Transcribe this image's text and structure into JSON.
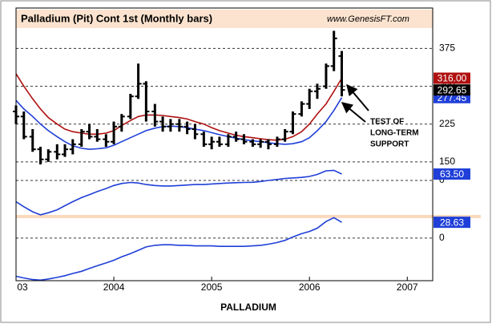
{
  "chart_data": [
    {
      "type": "ohlc",
      "title": "Palladium (Pit) Cont 1st  (Monthly bars)",
      "watermark": "www.GenesisFT.com",
      "annotation": [
        "TEST OF",
        "LONG-TERM",
        "SUPPORT"
      ],
      "bar_color": "#000000",
      "grid": true,
      "x": [
        2003,
        2003.08,
        2003.17,
        2003.25,
        2003.33,
        2003.42,
        2003.5,
        2003.58,
        2003.67,
        2003.75,
        2003.83,
        2003.92,
        2004,
        2004.08,
        2004.17,
        2004.25,
        2004.33,
        2004.42,
        2004.5,
        2004.58,
        2004.67,
        2004.75,
        2004.83,
        2004.92,
        2005,
        2005.08,
        2005.17,
        2005.25,
        2005.33,
        2005.42,
        2005.5,
        2005.58,
        2005.67,
        2005.75,
        2005.83,
        2005.92,
        2006,
        2006.08,
        2006.17,
        2006.25,
        2006.33
      ],
      "open": [
        250,
        240,
        200,
        175,
        155,
        170,
        165,
        175,
        185,
        210,
        200,
        195,
        190,
        220,
        240,
        280,
        305,
        250,
        230,
        220,
        225,
        220,
        215,
        205,
        185,
        190,
        185,
        200,
        195,
        190,
        185,
        190,
        185,
        195,
        210,
        245,
        265,
        290,
        300,
        340,
        360
      ],
      "high": [
        262,
        250,
        215,
        180,
        175,
        185,
        185,
        195,
        215,
        225,
        215,
        205,
        230,
        245,
        285,
        345,
        310,
        265,
        240,
        235,
        235,
        230,
        225,
        210,
        200,
        200,
        205,
        210,
        205,
        195,
        195,
        195,
        200,
        215,
        250,
        270,
        295,
        305,
        345,
        410,
        370
      ],
      "low": [
        225,
        195,
        170,
        145,
        150,
        155,
        160,
        165,
        180,
        195,
        190,
        180,
        185,
        210,
        235,
        275,
        230,
        220,
        210,
        210,
        210,
        205,
        195,
        180,
        175,
        180,
        180,
        190,
        185,
        180,
        178,
        175,
        180,
        190,
        205,
        240,
        255,
        275,
        295,
        330,
        280
      ],
      "close": [
        240,
        200,
        175,
        155,
        170,
        165,
        175,
        185,
        210,
        200,
        195,
        190,
        220,
        240,
        280,
        305,
        250,
        230,
        220,
        225,
        220,
        215,
        205,
        185,
        190,
        185,
        200,
        195,
        190,
        185,
        190,
        185,
        195,
        210,
        245,
        265,
        290,
        295,
        340,
        395,
        292.65
      ],
      "series": [
        {
          "color": "#b01010",
          "values": [
            325,
            300,
            275,
            255,
            238,
            225,
            215,
            210,
            207,
            205,
            205,
            207,
            212,
            222,
            232,
            240,
            243,
            243,
            242,
            240,
            238,
            235,
            230,
            225,
            218,
            212,
            207,
            203,
            200,
            198,
            196,
            194,
            193,
            195,
            200,
            210,
            225,
            245,
            265,
            290,
            316
          ],
          "value_labels": [
            null,
            null,
            null,
            null,
            null,
            null,
            null,
            null,
            null,
            null,
            null,
            null,
            null,
            null,
            null,
            null,
            null,
            null,
            null,
            null,
            null,
            null,
            null,
            null,
            null,
            null,
            null,
            null,
            null,
            null,
            null,
            null,
            null,
            null,
            null,
            null,
            null,
            null,
            null,
            null,
            "316.00"
          ]
        },
        {
          "color": "#1f3fd8",
          "values": [
            272,
            255,
            240,
            225,
            212,
            200,
            190,
            182,
            177,
            175,
            176,
            178,
            183,
            190,
            198,
            205,
            212,
            217,
            220,
            221,
            220,
            218,
            215,
            212,
            208,
            204,
            200,
            197,
            194,
            192,
            190,
            188,
            186,
            185,
            186,
            190,
            198,
            212,
            230,
            252,
            277.45
          ]
        }
      ],
      "xlim": [
        2003,
        2007.26
      ],
      "ylim": [
        118,
        452
      ],
      "yticks": [
        150,
        225,
        300,
        375
      ]
    },
    {
      "type": "line",
      "grid": true,
      "x": [
        2003,
        2003.08,
        2003.17,
        2003.25,
        2003.33,
        2003.42,
        2003.5,
        2003.58,
        2003.67,
        2003.75,
        2003.83,
        2003.92,
        2004,
        2004.08,
        2004.17,
        2004.25,
        2004.33,
        2004.42,
        2004.5,
        2004.58,
        2004.67,
        2004.75,
        2004.83,
        2004.92,
        2005,
        2005.08,
        2005.17,
        2005.25,
        2005.33,
        2005.42,
        2005.5,
        2005.58,
        2005.67,
        2005.75,
        2005.83,
        2005.92,
        2006,
        2006.08,
        2006.17,
        2006.25,
        2006.33
      ],
      "series": [
        {
          "color": "#1f3fd8",
          "values": [
            -210,
            -260,
            -310,
            -340,
            -320,
            -290,
            -250,
            -210,
            -170,
            -140,
            -110,
            -80,
            -50,
            -30,
            -20,
            -25,
            -40,
            -50,
            -55,
            -55,
            -50,
            -45,
            -40,
            -40,
            -35,
            -30,
            -25,
            -22,
            -20,
            -18,
            -10,
            0,
            10,
            20,
            25,
            30,
            40,
            60,
            95,
            100,
            63.5
          ],
          "value_labels": [
            null,
            null,
            null,
            null,
            null,
            null,
            null,
            null,
            null,
            null,
            null,
            null,
            null,
            null,
            null,
            null,
            null,
            null,
            null,
            null,
            null,
            null,
            null,
            null,
            null,
            null,
            null,
            null,
            null,
            null,
            null,
            null,
            null,
            null,
            null,
            null,
            null,
            null,
            null,
            null,
            "63.50"
          ]
        }
      ],
      "xlim": [
        2003,
        2007.26
      ],
      "ylim": [
        -357,
        143
      ],
      "yticks": [
        0
      ]
    },
    {
      "type": "line",
      "grid": true,
      "xlabel": "PALLADIUM",
      "x": [
        2003,
        2003.08,
        2003.17,
        2003.25,
        2003.33,
        2003.42,
        2003.5,
        2003.58,
        2003.67,
        2003.75,
        2003.83,
        2003.92,
        2004,
        2004.08,
        2004.17,
        2004.25,
        2004.33,
        2004.42,
        2004.5,
        2004.58,
        2004.67,
        2004.75,
        2004.83,
        2004.92,
        2005,
        2005.08,
        2005.17,
        2005.25,
        2005.33,
        2005.42,
        2005.5,
        2005.58,
        2005.67,
        2005.75,
        2005.83,
        2005.92,
        2006,
        2006.08,
        2006.17,
        2006.25,
        2006.33
      ],
      "series": [
        {
          "color": "#1f3fd8",
          "values": [
            -69,
            -72,
            -75,
            -76,
            -74,
            -71,
            -68,
            -64,
            -60,
            -55,
            -50,
            -45,
            -40,
            -34,
            -28,
            -22,
            -16,
            -13,
            -12,
            -12,
            -13,
            -13,
            -14,
            -14,
            -14,
            -15,
            -15,
            -15,
            -15,
            -14,
            -13,
            -11,
            -8,
            -4,
            2,
            8,
            12,
            18,
            30,
            37,
            28.63
          ]
        }
      ],
      "xlim": [
        2003,
        2007.26
      ],
      "ylim": [
        -77,
        39
      ],
      "yticks": [
        0
      ],
      "xticks": [
        {
          "value": 2003,
          "label": "03"
        },
        2004,
        2005,
        2006,
        2007
      ]
    }
  ]
}
